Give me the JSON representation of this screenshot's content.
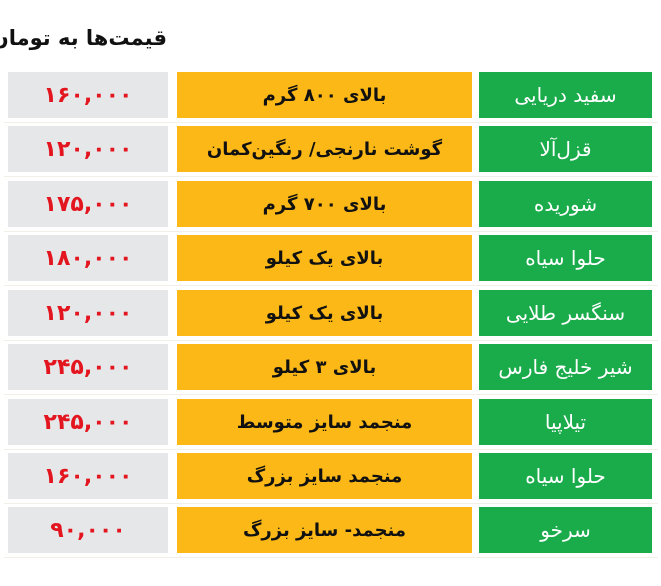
{
  "title": "قیمت‌ها به تومان",
  "colors": {
    "name_bg": "#1aab4b",
    "desc_bg": "#fbb817",
    "price_bg": "#e6e7e8",
    "price_text": "#e3151f"
  },
  "rows": [
    {
      "name": "سفید دریایی",
      "desc": "بالای ۸۰۰ گرم",
      "price": "۱۶۰,۰۰۰"
    },
    {
      "name": "قزل‌آلا",
      "desc": "گوشت نارنجی/ رنگین‌کمان",
      "price": "۱۲۰,۰۰۰"
    },
    {
      "name": "شوریده",
      "desc": "بالای ۷۰۰ گرم",
      "price": "۱۷۵,۰۰۰"
    },
    {
      "name": "حلوا سیاه",
      "desc": "بالای یک کیلو",
      "price": "۱۸۰,۰۰۰"
    },
    {
      "name": "سنگسر طلایی",
      "desc": "بالای یک کیلو",
      "price": "۱۲۰,۰۰۰"
    },
    {
      "name": "شیر خلیج فارس",
      "desc": "بالای ۳ کیلو",
      "price": "۲۴۵,۰۰۰"
    },
    {
      "name": "تیلاپیا",
      "desc": "منجمد سایز متوسط",
      "price": "۲۴۵,۰۰۰"
    },
    {
      "name": "حلوا سیاه",
      "desc": "منجمد سایز بزرگ",
      "price": "۱۶۰,۰۰۰"
    },
    {
      "name": "سرخو",
      "desc": "منجمد- سایز بزرگ",
      "price": "۹۰,۰۰۰"
    }
  ]
}
